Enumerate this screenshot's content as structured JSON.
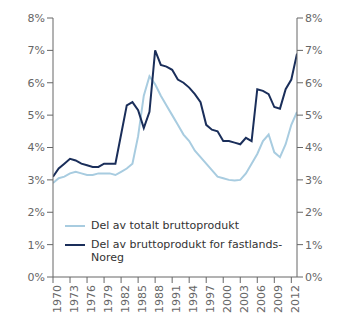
{
  "chart_data": {
    "type": "line",
    "x": [
      1970,
      1971,
      1972,
      1973,
      1974,
      1975,
      1976,
      1977,
      1978,
      1979,
      1980,
      1981,
      1982,
      1983,
      1984,
      1985,
      1986,
      1987,
      1988,
      1989,
      1990,
      1991,
      1992,
      1993,
      1994,
      1995,
      1996,
      1997,
      1998,
      1999,
      2000,
      2001,
      2002,
      2003,
      2004,
      2005,
      2006,
      2007,
      2008,
      2009,
      2010,
      2011,
      2012,
      2013
    ],
    "series": [
      {
        "name": "Del av totalt bruttoprodukt",
        "color": "#a8cce0",
        "values": [
          2.9,
          3.05,
          3.1,
          3.2,
          3.25,
          3.2,
          3.15,
          3.15,
          3.2,
          3.2,
          3.2,
          3.15,
          3.25,
          3.35,
          3.5,
          4.35,
          5.6,
          6.2,
          5.95,
          5.6,
          5.3,
          5.0,
          4.7,
          4.4,
          4.2,
          3.9,
          3.7,
          3.5,
          3.3,
          3.1,
          3.05,
          3.0,
          2.98,
          3.0,
          3.2,
          3.5,
          3.8,
          4.2,
          4.4,
          3.85,
          3.7,
          4.1,
          4.7,
          5.1
        ]
      },
      {
        "name": "Del av bruttoprodukt for fastlands-\nNoreg",
        "color": "#1a2e5a",
        "values": [
          3.1,
          3.35,
          3.5,
          3.65,
          3.6,
          3.5,
          3.45,
          3.4,
          3.4,
          3.5,
          3.5,
          3.5,
          4.4,
          5.3,
          5.4,
          5.15,
          4.6,
          5.1,
          7.0,
          6.55,
          6.5,
          6.4,
          6.1,
          6.0,
          5.85,
          5.65,
          5.4,
          4.7,
          4.55,
          4.5,
          4.2,
          4.2,
          4.15,
          4.1,
          4.3,
          4.2,
          5.8,
          5.75,
          5.65,
          5.25,
          5.2,
          5.8,
          6.1,
          6.9
        ]
      }
    ],
    "xlim": [
      1970,
      2013
    ],
    "xticks": [
      1970,
      1973,
      1976,
      1979,
      1982,
      1985,
      1988,
      1991,
      1994,
      1997,
      2000,
      2003,
      2006,
      2009,
      2012
    ],
    "ylim": [
      0,
      8
    ],
    "yticks": [
      {
        "value": 0,
        "label": "0%"
      },
      {
        "value": 1,
        "label": "1%"
      },
      {
        "value": 2,
        "label": "2%"
      },
      {
        "value": 3,
        "label": "3%"
      },
      {
        "value": 4,
        "label": "4%"
      },
      {
        "value": 5,
        "label": "5%"
      },
      {
        "value": 6,
        "label": "6%"
      },
      {
        "value": 7,
        "label": "7%"
      },
      {
        "value": 8,
        "label": "8%"
      }
    ],
    "y2lim": [
      0,
      8
    ],
    "y2ticks": [
      {
        "value": 0,
        "label": "0%"
      },
      {
        "value": 1,
        "label": "1%"
      },
      {
        "value": 2,
        "label": "2%"
      },
      {
        "value": 3,
        "label": "3%"
      },
      {
        "value": 4,
        "label": "4%"
      },
      {
        "value": 5,
        "label": "5%"
      },
      {
        "value": 6,
        "label": "6%"
      },
      {
        "value": 7,
        "label": "7%"
      },
      {
        "value": 8,
        "label": "8%"
      }
    ],
    "grid": false,
    "legend": "lower left"
  }
}
